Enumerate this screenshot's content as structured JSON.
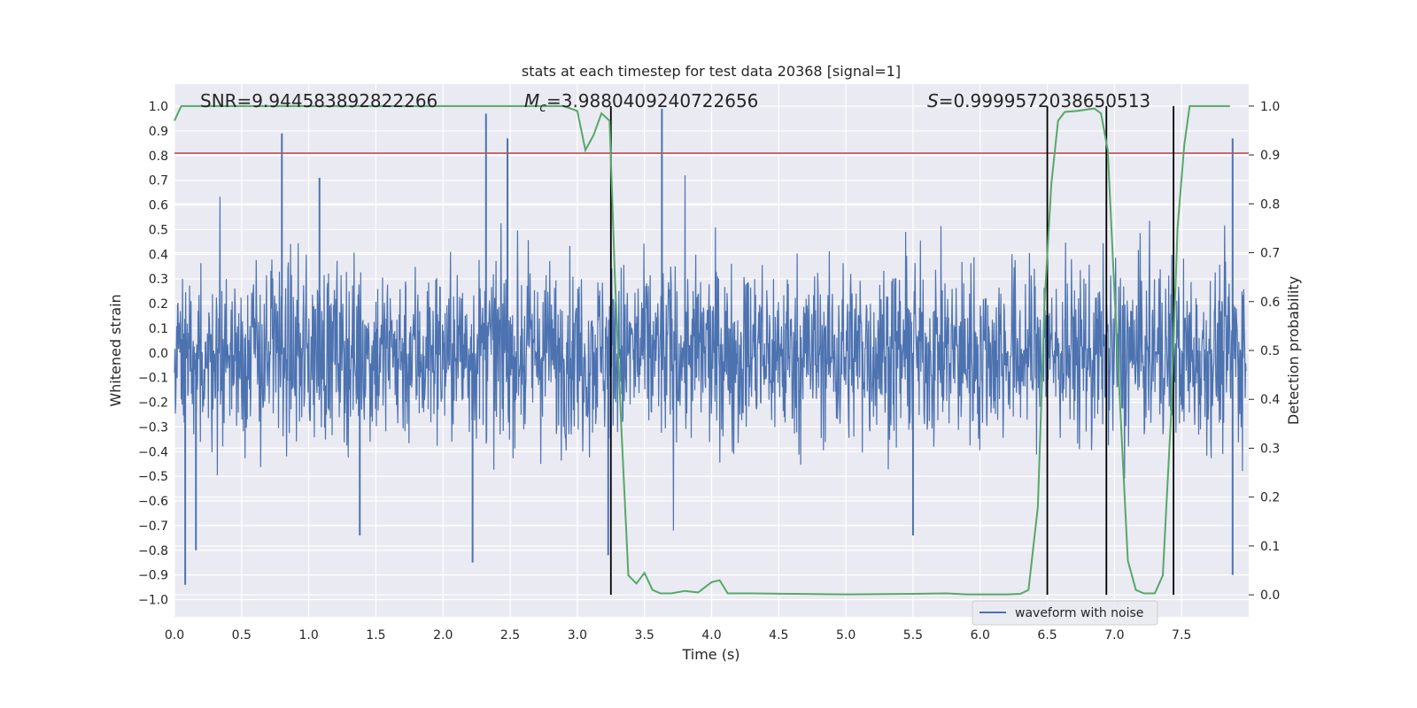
{
  "chart_data": {
    "type": "line",
    "title": "stats at each timestep for test data 20368 [signal=1]",
    "xlabel": "Time (s)",
    "ylabel": "Whitened strain",
    "y2label": "Detection probability",
    "xlim": [
      0.0,
      8.0
    ],
    "ylim": [
      -1.07,
      1.09
    ],
    "y2lim": [
      -0.045,
      1.045
    ],
    "xticks": [
      "0.0",
      "0.5",
      "1.0",
      "1.5",
      "2.0",
      "2.5",
      "3.0",
      "3.5",
      "4.0",
      "4.5",
      "5.0",
      "5.5",
      "6.0",
      "6.5",
      "7.0",
      "7.5"
    ],
    "yticks": [
      "1.0",
      "0.9",
      "0.8",
      "0.7",
      "0.6",
      "0.5",
      "0.4",
      "0.3",
      "0.2",
      "0.1",
      "0.0",
      "-0.1",
      "-0.2",
      "-0.3",
      "-0.4",
      "-0.5",
      "-0.6",
      "-0.7",
      "-0.8",
      "-0.9",
      "-1.0"
    ],
    "y2ticks": [
      "1.0",
      "0.9",
      "0.8",
      "0.7",
      "0.6",
      "0.5",
      "0.4",
      "0.3",
      "0.2",
      "0.1",
      "0.0"
    ],
    "grid": true,
    "legend_position": "lower-right",
    "series": [
      {
        "name": "waveform with noise",
        "axis": "left",
        "color": "#4c72b0",
        "style": "dense noise, approx. amplitude envelope ±0.4 with spikes",
        "spikes": [
          {
            "x": 0.08,
            "y": -0.94
          },
          {
            "x": 0.16,
            "y": -0.8
          },
          {
            "x": 0.8,
            "y": 0.89
          },
          {
            "x": 1.08,
            "y": 0.71
          },
          {
            "x": 1.38,
            "y": -0.74
          },
          {
            "x": 2.22,
            "y": -0.85
          },
          {
            "x": 2.32,
            "y": 0.97
          },
          {
            "x": 2.48,
            "y": 0.87
          },
          {
            "x": 3.23,
            "y": -0.82
          },
          {
            "x": 3.63,
            "y": 0.99
          },
          {
            "x": 5.5,
            "y": -0.74
          },
          {
            "x": 7.88,
            "y": 0.87
          },
          {
            "x": 7.88,
            "y": -0.9
          }
        ]
      },
      {
        "name": "",
        "axis": "right",
        "color": "#55a868",
        "x": [
          0.0,
          0.05,
          0.3,
          0.6,
          1.0,
          1.5,
          2.0,
          2.5,
          2.8,
          2.9,
          3.0,
          3.06,
          3.12,
          3.18,
          3.24,
          3.28,
          3.33,
          3.38,
          3.44,
          3.5,
          3.56,
          3.62,
          3.7,
          3.8,
          3.9,
          4.0,
          4.06,
          4.12,
          4.3,
          4.6,
          5.0,
          5.5,
          5.75,
          5.9,
          6.2,
          6.3,
          6.36,
          6.43,
          6.48,
          6.53,
          6.58,
          6.63,
          6.72,
          6.85,
          6.9,
          6.95,
          7.0,
          7.1,
          7.16,
          7.22,
          7.3,
          7.36,
          7.42,
          7.47,
          7.52,
          7.56,
          7.7,
          7.86
        ],
        "y": [
          0.97,
          1.0,
          1.0,
          1.0,
          1.0,
          1.0,
          1.0,
          1.0,
          1.0,
          1.0,
          0.99,
          0.91,
          0.94,
          0.985,
          0.97,
          0.65,
          0.33,
          0.04,
          0.023,
          0.045,
          0.01,
          0.003,
          0.003,
          0.008,
          0.005,
          0.026,
          0.03,
          0.003,
          0.003,
          0.002,
          0.001,
          0.002,
          0.003,
          0.001,
          0.001,
          0.002,
          0.01,
          0.18,
          0.6,
          0.84,
          0.97,
          0.988,
          0.99,
          0.995,
          0.985,
          0.91,
          0.62,
          0.07,
          0.01,
          0.003,
          0.003,
          0.04,
          0.36,
          0.75,
          0.92,
          1.0,
          1.0,
          1.0
        ]
      }
    ],
    "hlines": [
      {
        "axis": "left",
        "y": 0.81,
        "color": "#c44e52"
      }
    ],
    "vlines": [
      {
        "x": 3.25,
        "color": "#000000"
      },
      {
        "x": 6.5,
        "color": "#000000"
      },
      {
        "x": 6.94,
        "color": "#000000"
      },
      {
        "x": 7.44,
        "color": "#000000"
      }
    ],
    "annotations": [
      {
        "id": "snr",
        "text": "SNR=9.944583892822266"
      },
      {
        "id": "mc",
        "text": "=3.9880409240722656",
        "symbol": "M",
        "subscript": "c"
      },
      {
        "id": "s",
        "text": "=0.9999572038650513",
        "symbol": "S"
      }
    ]
  }
}
